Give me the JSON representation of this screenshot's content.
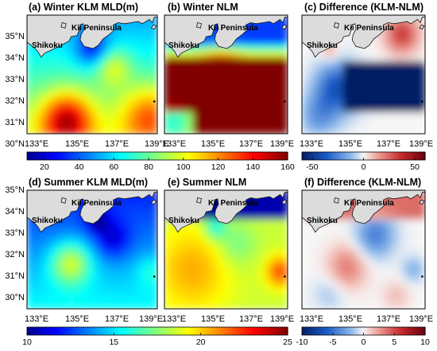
{
  "panels": [
    {
      "title": "(a) Winter KLM MLD(m)",
      "field": "winter_klm",
      "colorbar": "a"
    },
    {
      "title": "(b) Winter NLM",
      "field": "winter_nlm",
      "colorbar": "a"
    },
    {
      "title": "(c) Difference (KLM-NLM)",
      "field": "winter_diff",
      "colorbar": "b"
    },
    {
      "title": "(d) Summer KLM MLD(m)",
      "field": "summer_klm",
      "colorbar": "c"
    },
    {
      "title": "(e) Summer NLM",
      "field": "summer_nlm",
      "colorbar": "c"
    },
    {
      "title": "(f) Difference (KLM-NLM)",
      "field": "summer_diff",
      "colorbar": "d"
    }
  ],
  "map_labels": {
    "kii": "Kii Peninsula",
    "shikoku": "Shikoku"
  },
  "lat_ticks": [
    "35°N",
    "34°N",
    "33°N",
    "32°N",
    "31°N",
    "30°N"
  ],
  "lon_ticks": [
    "133°E",
    "135°E",
    "137°E",
    "139°E"
  ],
  "extent": {
    "lon_min": 132.5,
    "lon_max": 139.0,
    "lat_min": 29.5,
    "lat_max": 35.0
  },
  "colorbars": {
    "a": {
      "cmap": "jet",
      "min": 10,
      "max": 160,
      "ticks": [
        20,
        40,
        60,
        80,
        100,
        120,
        140,
        160
      ]
    },
    "b": {
      "cmap": "bwr",
      "min": -60,
      "max": 60,
      "ticks": [
        -50,
        0,
        50
      ]
    },
    "c": {
      "cmap": "jet",
      "min": 10,
      "max": 25,
      "ticks": [
        10,
        15,
        20,
        25
      ]
    },
    "d": {
      "cmap": "bwr",
      "min": -10,
      "max": 10,
      "ticks": [
        -10,
        -5,
        0,
        5,
        10
      ]
    }
  },
  "colors": {
    "land": "#dcdcdc",
    "coast": "#111111",
    "frame": "#000000"
  }
}
